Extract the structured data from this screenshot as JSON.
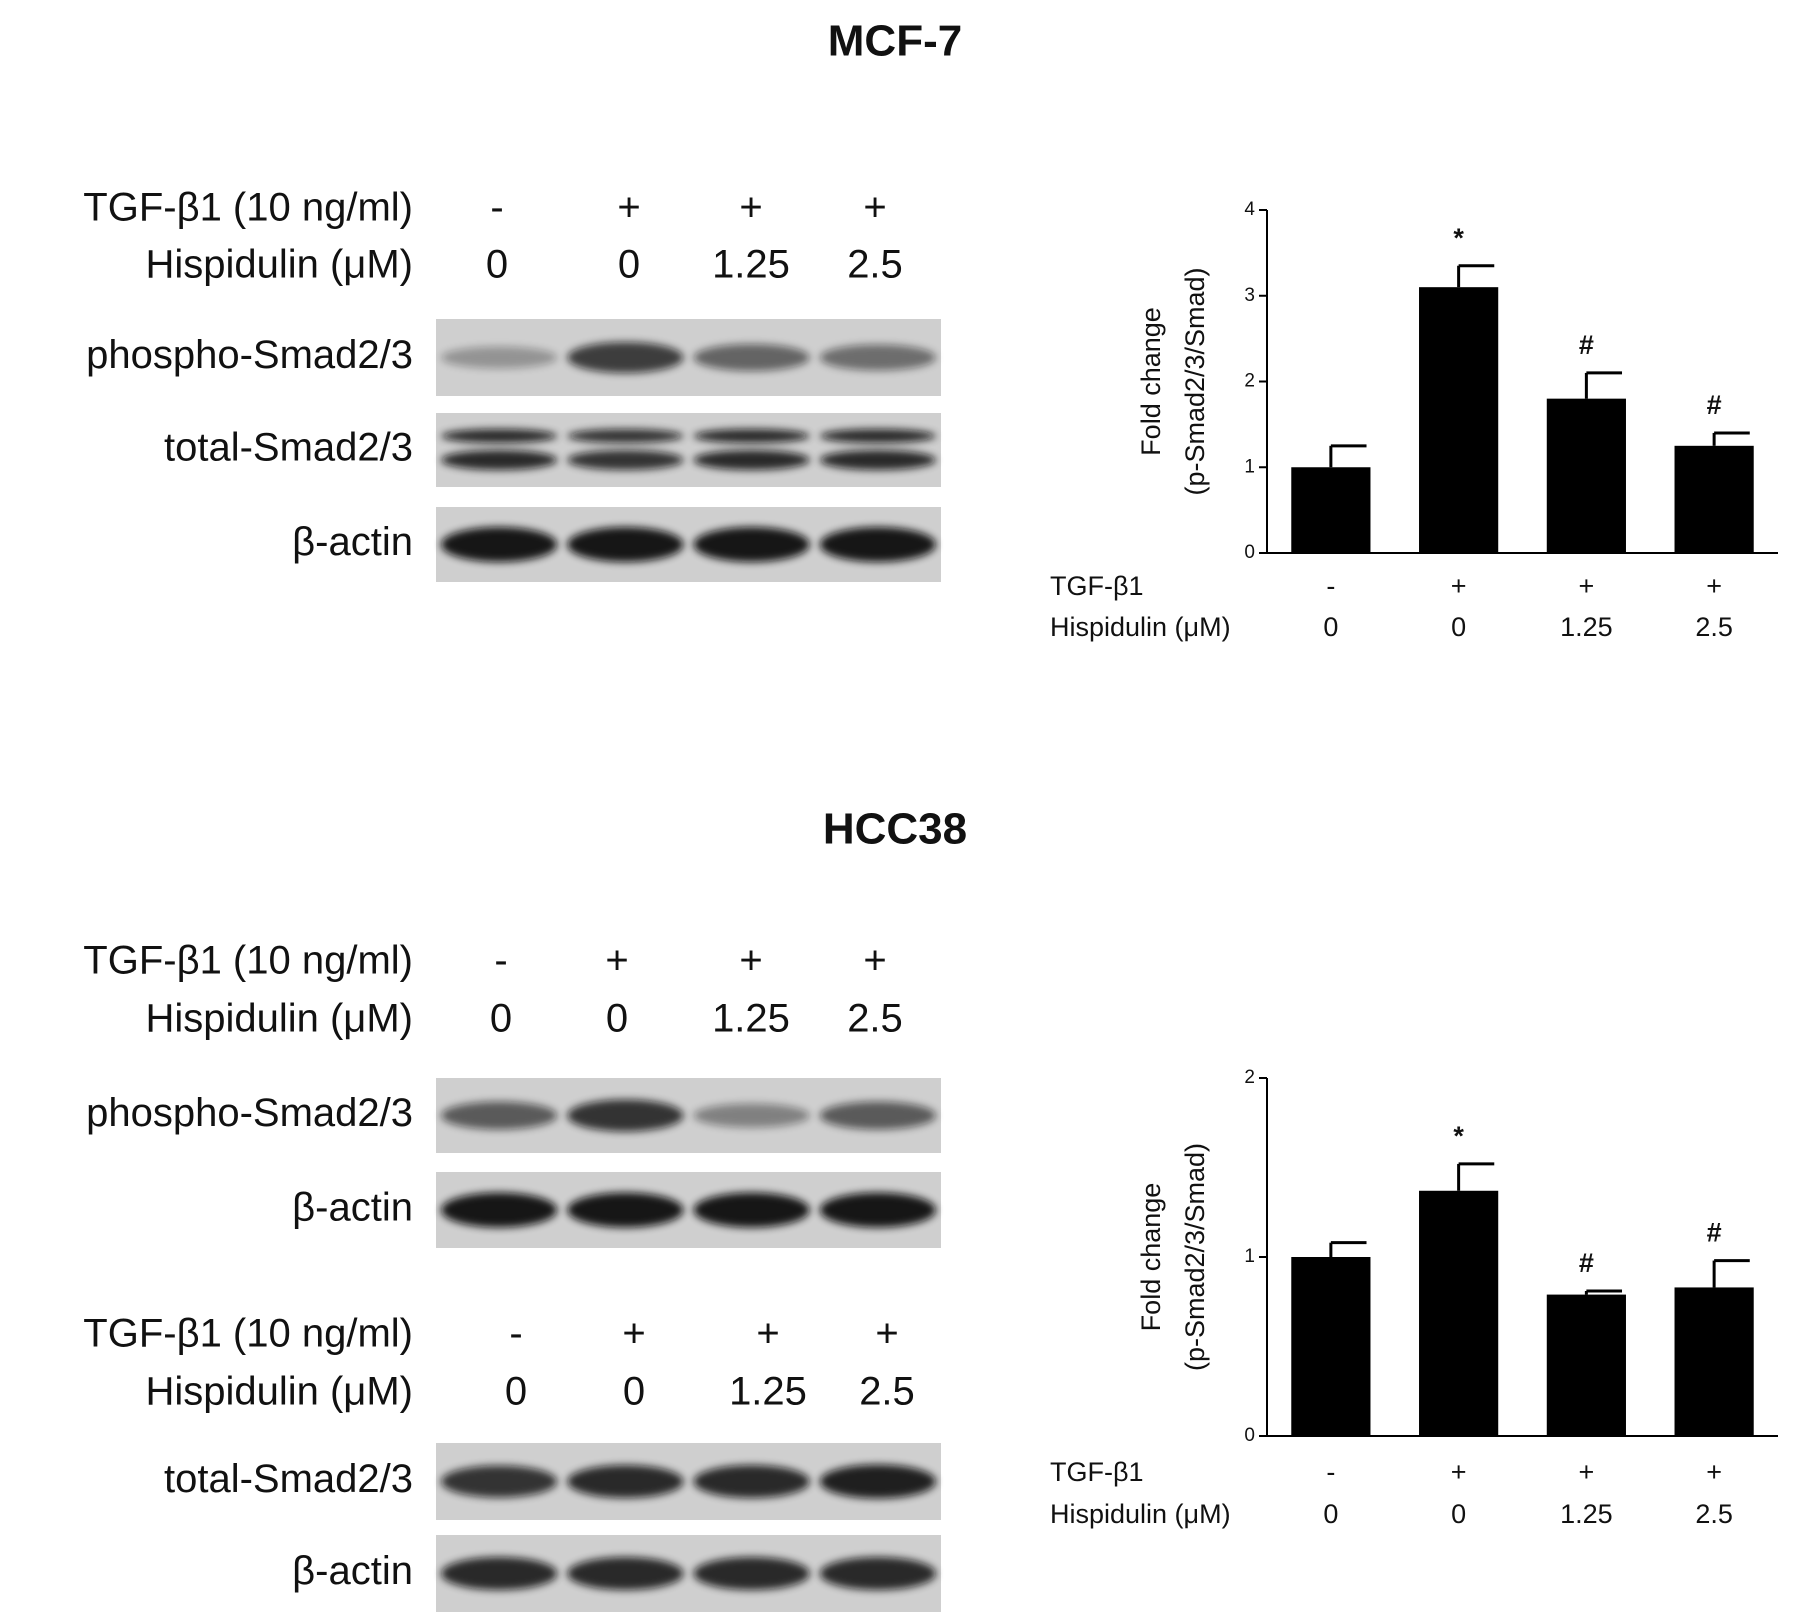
{
  "panels": [
    {
      "title": "MCF-7",
      "groups": [
        {
          "rows": [
            {
              "label": "TGF-β1 (10 ng/ml)",
              "lanes": [
                "-",
                "+",
                "+",
                "+"
              ]
            },
            {
              "label": "Hispidulin (μM)",
              "lanes": [
                "0",
                "0",
                "1.25",
                "2.5"
              ]
            }
          ],
          "blots": [
            "phospho-Smad2/3",
            "total-Smad2/3",
            "β-actin"
          ]
        }
      ]
    },
    {
      "title": "HCC38",
      "groups": [
        {
          "rows": [
            {
              "label": "TGF-β1 (10 ng/ml)",
              "lanes": [
                "-",
                "+",
                "+",
                "+"
              ]
            },
            {
              "label": "Hispidulin (μM)",
              "lanes": [
                "0",
                "0",
                "1.25",
                "2.5"
              ]
            }
          ],
          "blots": [
            "phospho-Smad2/3",
            "β-actin"
          ]
        },
        {
          "rows": [
            {
              "label": "TGF-β1 (10 ng/ml)",
              "lanes": [
                "-",
                "+",
                "+",
                "+"
              ]
            },
            {
              "label": "Hispidulin (μM)",
              "lanes": [
                "0",
                "0",
                "1.25",
                "2.5"
              ]
            }
          ],
          "blots": [
            "total-Smad2/3",
            "β-actin"
          ]
        }
      ]
    }
  ],
  "chart_data": [
    {
      "type": "bar",
      "ylabel": "Fold change",
      "ylabel2": "(p-Smad2/3/Smad)",
      "category_rows": [
        {
          "label": "TGF-β1",
          "values": [
            "-",
            "+",
            "+",
            "+"
          ]
        },
        {
          "label": "Hispidulin (μM)",
          "values": [
            "0",
            "0",
            "1.25",
            "2.5"
          ]
        }
      ],
      "values": [
        1.0,
        3.1,
        1.8,
        1.25
      ],
      "errors": [
        0.25,
        0.25,
        0.3,
        0.15
      ],
      "annotations": [
        null,
        "*",
        "#",
        "#"
      ],
      "color": "#000000",
      "ylim": [
        0,
        4
      ],
      "yticks": [
        0,
        1,
        2,
        3,
        4
      ]
    },
    {
      "type": "bar",
      "ylabel": "Fold change",
      "ylabel2": "(p-Smad2/3/Smad)",
      "category_rows": [
        {
          "label": "TGF-β1",
          "values": [
            "-",
            "+",
            "+",
            "+"
          ]
        },
        {
          "label": "Hispidulin (μM)",
          "values": [
            "0",
            "0",
            "1.25",
            "2.5"
          ]
        }
      ],
      "values": [
        1.0,
        1.37,
        0.79,
        0.83
      ],
      "errors": [
        0.08,
        0.15,
        0.02,
        0.15
      ],
      "annotations": [
        null,
        "*",
        "#",
        "#"
      ],
      "color": "#000000",
      "ylim": [
        0,
        2
      ],
      "yticks": [
        0,
        1,
        2
      ]
    }
  ]
}
